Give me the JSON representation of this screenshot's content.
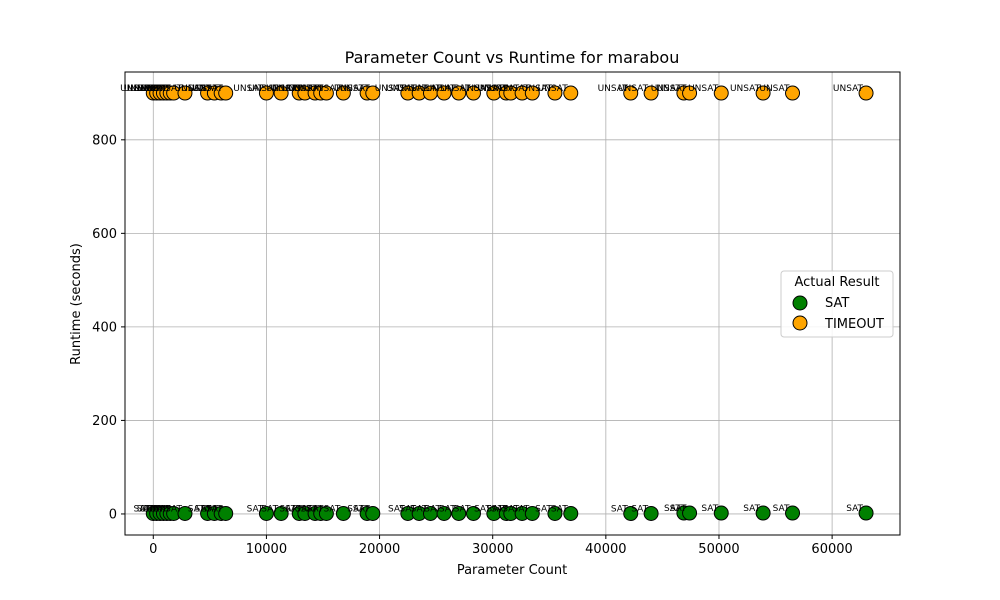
{
  "chart_data": {
    "type": "scatter",
    "title": "Parameter Count vs Runtime for marabou",
    "xlabel": "Parameter Count",
    "ylabel": "Runtime (seconds)",
    "xlim": [
      -2500,
      66000
    ],
    "ylim": [
      -45,
      945
    ],
    "xticks": [
      0,
      10000,
      20000,
      30000,
      40000,
      50000,
      60000
    ],
    "yticks": [
      0,
      200,
      400,
      600,
      800
    ],
    "grid": true,
    "legend": {
      "title": "Actual Result",
      "position": "center-right"
    },
    "series": [
      {
        "name": "SAT",
        "color": "#008000",
        "annotation": "SAT",
        "x": [
          0,
          300,
          600,
          900,
          1200,
          1500,
          1800,
          2800,
          4800,
          5400,
          6000,
          6400,
          10000,
          11300,
          12900,
          13400,
          14300,
          14800,
          15300,
          16800,
          18900,
          19400,
          22500,
          23500,
          24500,
          25700,
          27000,
          28300,
          30100,
          31200,
          31600,
          32600,
          33500,
          35500,
          36900,
          42200,
          44000,
          46900,
          47400,
          50200,
          53900,
          56500,
          63000
        ],
        "y": [
          1,
          1,
          1,
          1,
          1,
          1,
          1,
          1,
          1,
          1,
          1,
          1,
          1,
          1,
          1,
          1,
          1,
          1,
          1,
          1,
          1,
          1,
          1,
          1,
          1,
          1,
          1,
          1,
          1,
          1,
          1,
          1,
          1,
          1,
          1,
          1,
          1,
          2,
          2,
          2,
          2,
          2,
          2
        ]
      },
      {
        "name": "TIMEOUT",
        "color": "#FFA500",
        "annotation": "UNSAT",
        "x": [
          0,
          300,
          600,
          900,
          1200,
          1500,
          1800,
          2800,
          4800,
          5400,
          6000,
          6400,
          10000,
          11300,
          12900,
          13400,
          14300,
          14800,
          15300,
          16800,
          18900,
          19400,
          22500,
          23500,
          24500,
          25700,
          27000,
          28300,
          30100,
          31200,
          31600,
          32600,
          33500,
          35500,
          36900,
          42200,
          44000,
          46900,
          47400,
          50200,
          53900,
          56500,
          63000
        ],
        "y": [
          900,
          900,
          900,
          900,
          900,
          900,
          900,
          900,
          900,
          900,
          900,
          900,
          900,
          900,
          900,
          900,
          900,
          900,
          900,
          900,
          900,
          900,
          900,
          900,
          900,
          900,
          900,
          900,
          900,
          900,
          900,
          900,
          900,
          900,
          900,
          900,
          900,
          900,
          900,
          900,
          900,
          900,
          900
        ]
      }
    ]
  }
}
